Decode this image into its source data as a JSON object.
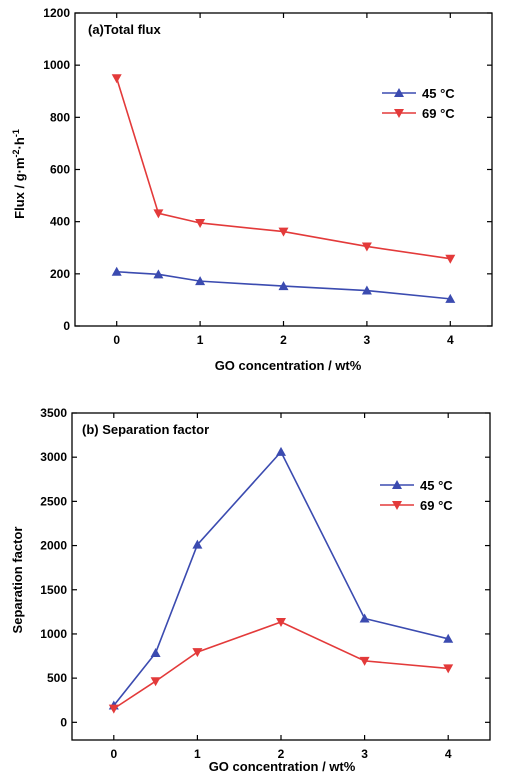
{
  "chart_data": [
    {
      "type": "line",
      "title": "(a)Total flux",
      "xlabel": "GO concentration / wt%",
      "ylabel_main": "Flux / g·m",
      "ylabel_sup1": "-2",
      "ylabel_mid": "·h",
      "ylabel_sup2": "-1",
      "x": [
        0,
        0.5,
        1,
        2,
        3,
        4
      ],
      "xticks": [
        0,
        1,
        2,
        3,
        4
      ],
      "xlim": [
        -0.5,
        4.5
      ],
      "yticks": [
        0,
        200,
        400,
        600,
        800,
        1000,
        1200
      ],
      "ylim": [
        0,
        1200
      ],
      "legend_position": "top-right",
      "series": [
        {
          "name": "45 °C",
          "color": "#3b4bb0",
          "marker": "triangle-up",
          "values": [
            208,
            198,
            172,
            153,
            136,
            104
          ]
        },
        {
          "name": "69 °C",
          "color": "#e33a3a",
          "marker": "triangle-down",
          "values": [
            950,
            432,
            395,
            362,
            305,
            258
          ]
        }
      ]
    },
    {
      "type": "line",
      "title": "(b) Separation factor",
      "xlabel": "GO concentration / wt%",
      "ylabel": "Separation factor",
      "x": [
        0,
        0.5,
        1,
        2,
        3,
        4
      ],
      "xticks": [
        0,
        1,
        2,
        3,
        4
      ],
      "xlim": [
        -0.5,
        4.5
      ],
      "yticks": [
        0,
        500,
        1000,
        1500,
        2000,
        2500,
        3000,
        3500
      ],
      "ylim": [
        -200,
        3500
      ],
      "legend_position": "top-right",
      "series": [
        {
          "name": "45 °C",
          "color": "#3b4bb0",
          "marker": "triangle-up",
          "values": [
            190,
            785,
            2010,
            3060,
            1175,
            945
          ]
        },
        {
          "name": "69 °C",
          "color": "#e33a3a",
          "marker": "triangle-down",
          "values": [
            155,
            465,
            795,
            1135,
            695,
            610
          ]
        }
      ]
    }
  ]
}
